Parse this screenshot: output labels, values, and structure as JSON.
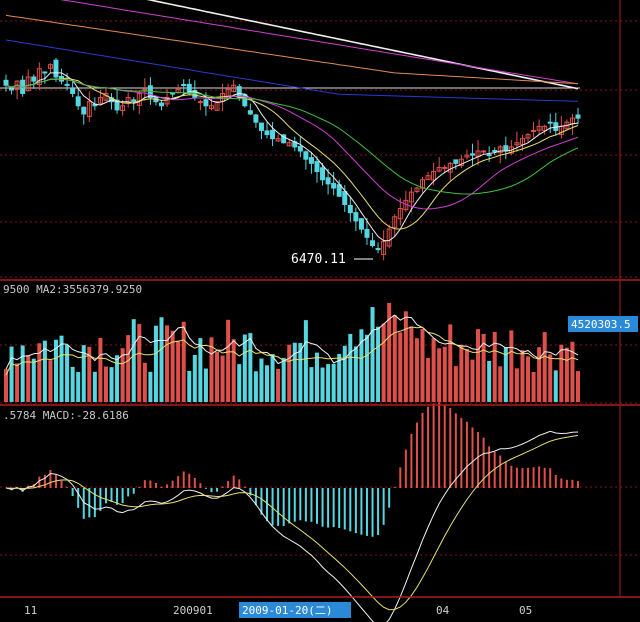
{
  "colors": {
    "background": "#000000",
    "grid": "#8a1515",
    "frame": "#b01c1c",
    "up": "#e0504a",
    "down": "#55d6e0",
    "ma_white": "#f0f0f0",
    "ma_yellow": "#e8e070",
    "ma_magenta": "#d040d0",
    "ma_green": "#40c040",
    "ma_blue": "#2a3ad0",
    "ma_orange": "#e08a50",
    "label_text": "#ffffff",
    "indicator_text": "#c8c8c8",
    "highlight_bg": "#2a8ad8"
  },
  "price_panel": {
    "low_label": "6470.11"
  },
  "volume_panel": {
    "indicator_text": "9500  MA2:3556379.9250",
    "last_value_label": "4520303.5"
  },
  "macd_panel": {
    "indicator_text": ".5784  MACD:-28.6186"
  },
  "x_axis": {
    "labels": [
      "11",
      "200901",
      "04",
      "05"
    ],
    "highlight_label": "2009-01-20(二)"
  },
  "chart_data": [
    {
      "type": "candlestick",
      "title": "",
      "low_annotation": 6470.11,
      "close": [
        8550,
        8500,
        8600,
        8450,
        8650,
        8600,
        8750,
        8700,
        8800,
        8650,
        8600,
        8550,
        8450,
        8300,
        8200,
        8350,
        8300,
        8400,
        8450,
        8350,
        8250,
        8300,
        8400,
        8350,
        8450,
        8500,
        8400,
        8350,
        8300,
        8400,
        8450,
        8500,
        8550,
        8450,
        8400,
        8350,
        8300,
        8300,
        8350,
        8450,
        8500,
        8550,
        8400,
        8300,
        8200,
        8100,
        8000,
        7950,
        7900,
        7900,
        7850,
        7850,
        7800,
        7750,
        7650,
        7600,
        7500,
        7400,
        7350,
        7300,
        7200,
        7100,
        7000,
        6900,
        6800,
        6700,
        6600,
        6550,
        6650,
        6800,
        6950,
        7050,
        7150,
        7250,
        7300,
        7400,
        7450,
        7500,
        7550,
        7550,
        7600,
        7600,
        7650,
        7700,
        7700,
        7750,
        7750,
        7700,
        7750,
        7800,
        7750,
        7800,
        7850,
        7900,
        7950,
        8000,
        8050,
        8050,
        8100,
        8000,
        8050,
        8100,
        8150,
        8150
      ]
    },
    {
      "type": "bar",
      "title": "",
      "series": [
        {
          "name": "MA2",
          "values": [
            3556379.925
          ]
        }
      ],
      "last_value": 4520303.5
    },
    {
      "type": "bar",
      "title": "",
      "series": [
        {
          "name": "MACD",
          "values": [
            -28.6186
          ]
        }
      ]
    }
  ]
}
